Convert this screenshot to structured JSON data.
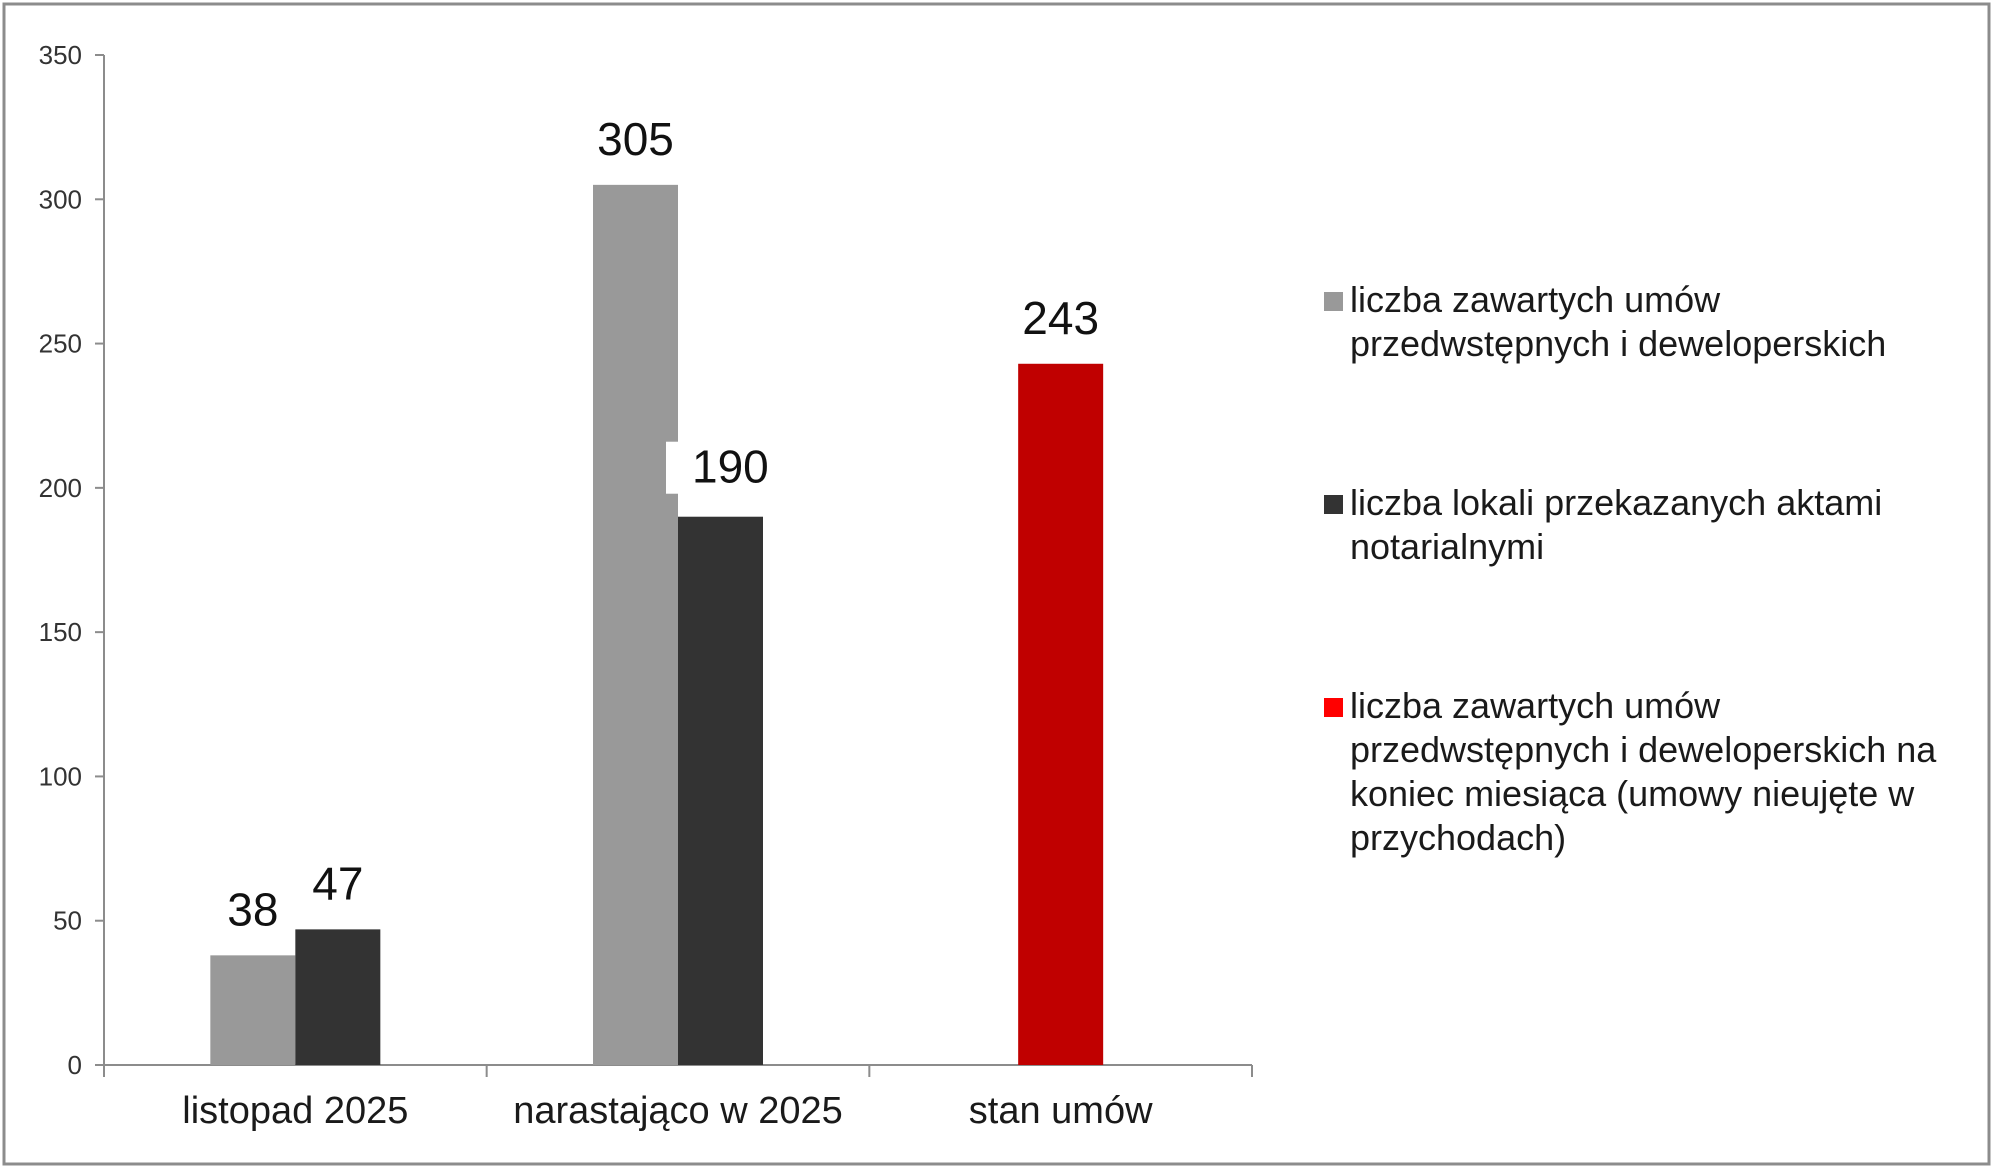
{
  "chart_data": {
    "type": "bar",
    "categories": [
      "listopad 2025",
      "narastająco w 2025",
      "stan umów"
    ],
    "ylim": [
      0,
      350
    ],
    "yticks": [
      0,
      50,
      100,
      150,
      200,
      250,
      300,
      350
    ],
    "grid": false,
    "legend_position": "right",
    "series": [
      {
        "name": "liczba zawartych umów przedwstępnych i deweloperskich",
        "legend_lines": [
          "liczba zawartych umów",
          "przedwstępnych i deweloperskich"
        ],
        "color": "#999999",
        "values": [
          38,
          305,
          null
        ]
      },
      {
        "name": "liczba lokali przekazanych aktami notarialnymi",
        "legend_lines": [
          "liczba lokali przekazanych aktami",
          "notarialnymi"
        ],
        "color": "#333333",
        "values": [
          47,
          190,
          null
        ]
      },
      {
        "name": "liczba zawartych umów przedwstępnych i deweloperskich na koniec miesiąca (umowy nieujęte w przychodach)",
        "legend_lines": [
          "liczba zawartych umów",
          "przedwstępnych i deweloperskich na",
          "koniec miesiąca (umowy nieujęte w",
          "przychodach)"
        ],
        "color": "#c00000",
        "legend_color": "#ff0000",
        "values": [
          null,
          null,
          243
        ]
      }
    ]
  }
}
